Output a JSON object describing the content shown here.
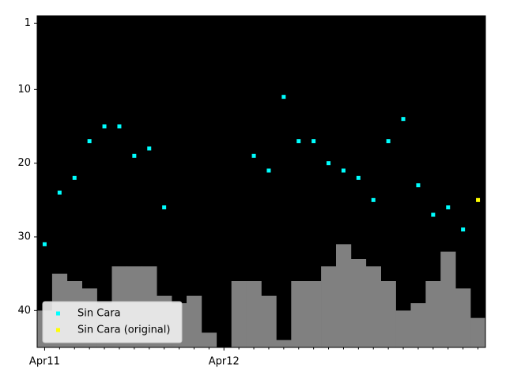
{
  "chart_data": {
    "type": "scatter",
    "categories": [
      "Apr11",
      null,
      null,
      null,
      null,
      null,
      null,
      null,
      null,
      null,
      null,
      null,
      "Apr12",
      null,
      null,
      null,
      null,
      null,
      null,
      null,
      null,
      null,
      null,
      null,
      null,
      null,
      null,
      null,
      null,
      null
    ],
    "series": [
      {
        "name": "Sin Cara",
        "color": "#00ffff",
        "values": [
          31,
          24,
          22,
          17,
          15,
          15,
          19,
          18,
          26,
          null,
          null,
          null,
          null,
          null,
          19,
          21,
          11,
          17,
          17,
          20,
          21,
          22,
          25,
          17,
          14,
          23,
          27,
          26,
          29,
          null
        ]
      },
      {
        "name": "Sin Cara (original)",
        "color": "#ffff00",
        "values": [
          null,
          null,
          null,
          null,
          null,
          null,
          null,
          null,
          null,
          null,
          null,
          null,
          null,
          null,
          null,
          null,
          null,
          null,
          null,
          null,
          null,
          null,
          null,
          null,
          null,
          null,
          null,
          null,
          null,
          25
        ]
      }
    ],
    "bars": {
      "color": "#808080",
      "values": [
        40,
        35,
        36,
        37,
        39,
        34,
        34,
        34,
        38,
        39,
        38,
        43,
        null,
        36,
        36,
        38,
        44,
        36,
        36,
        34,
        31,
        33,
        34,
        36,
        40,
        39,
        36,
        32,
        37,
        41
      ]
    },
    "ylim": [
      0,
      45
    ],
    "y_inverted": true,
    "yticks": [
      1,
      10,
      20,
      30,
      40
    ],
    "background": "#000000",
    "legend": "lower left"
  }
}
